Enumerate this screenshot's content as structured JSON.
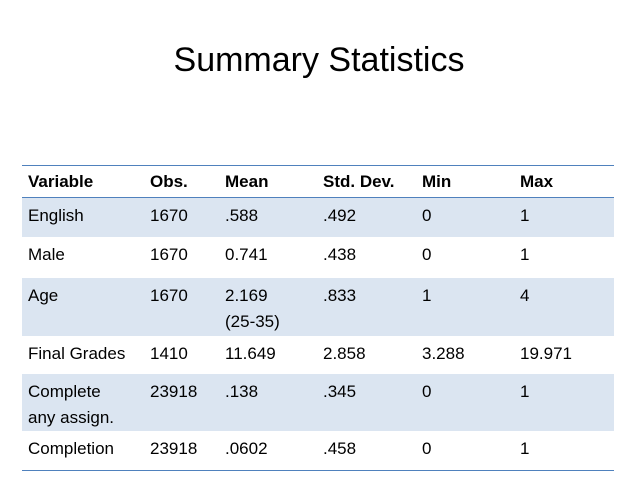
{
  "title": "Summary Statistics",
  "table": {
    "columns": [
      "Variable",
      "Obs.",
      "Mean",
      "Std. Dev.",
      "Min",
      "Max"
    ],
    "rows": [
      {
        "variable": [
          "English"
        ],
        "obs": "1670",
        "mean": [
          ".588"
        ],
        "std": ".492",
        "min": "0",
        "max": "1"
      },
      {
        "variable": [
          "Male"
        ],
        "obs": "1670",
        "mean": [
          "0.741"
        ],
        "std": ".438",
        "min": "0",
        "max": "1"
      },
      {
        "variable": [
          "Age"
        ],
        "obs": "1670",
        "mean": [
          "2.169",
          "(25-35)"
        ],
        "std": ".833",
        "min": "1",
        "max": "4"
      },
      {
        "variable": [
          "Final Grades"
        ],
        "obs": "1410",
        "mean": [
          "11.649"
        ],
        "std": "2.858",
        "min": "3.288",
        "max": "19.971"
      },
      {
        "variable": [
          "Complete",
          "any assign."
        ],
        "obs": "23918",
        "mean": [
          ".138"
        ],
        "std": ".345",
        "min": "0",
        "max": "1"
      },
      {
        "variable": [
          "Completion"
        ],
        "obs": "23918",
        "mean": [
          ".0602"
        ],
        "std": ".458",
        "min": "0",
        "max": "1"
      }
    ]
  },
  "colors": {
    "rule": "#4f81bd",
    "band": "#dbe5f1"
  }
}
